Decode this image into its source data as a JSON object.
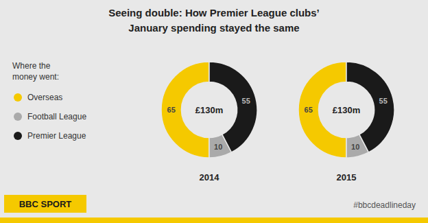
{
  "chart_data": {
    "type": "donut",
    "title": "Seeing double: How Premier League clubs’",
    "subtitle": "January spending stayed the same",
    "categories": [
      "Overseas",
      "Football League",
      "Premier League"
    ],
    "colors": [
      "#f5c900",
      "#aaaaaa",
      "#1a1a1a"
    ],
    "series": [
      {
        "name": "2014",
        "values": [
          65,
          10,
          55
        ]
      },
      {
        "name": "2015",
        "values": [
          65,
          10,
          55
        ]
      }
    ],
    "data_labels": true,
    "legend": "left",
    "annotations": [
      "£130m",
      "Where the",
      "money went:",
      "#bbcdeadlineday",
      "BBC SPORT"
    ]
  }
}
